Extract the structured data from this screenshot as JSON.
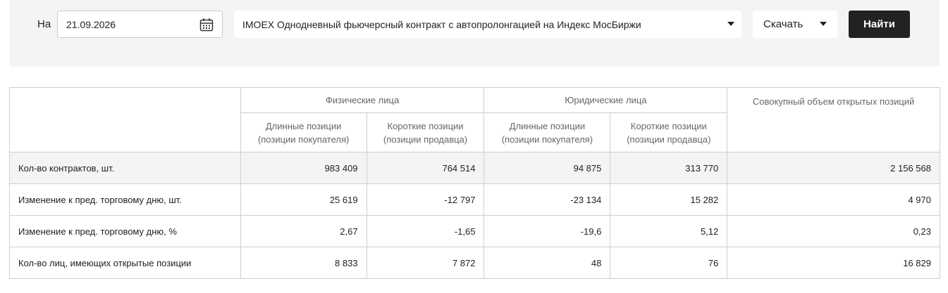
{
  "filters": {
    "date_label": "На",
    "date": "21.09.2026",
    "instrument": "IMOEX Однодневный фьючерсный контракт с автопролонгацией на Индекс МосБиржи",
    "download": "Скачать",
    "submit": "Найти"
  },
  "table": {
    "groups": [
      "Физические лица",
      "Юридические лица",
      "Совокупный объем открытых позиций"
    ],
    "subheaders": [
      [
        "Длинные позиции",
        "(позиции покупателя)"
      ],
      [
        "Короткие позиции",
        "(позиции продавца)"
      ],
      [
        "Длинные позиции",
        "(позиции покупателя)"
      ],
      [
        "Короткие позиции",
        "(позиции продавца)"
      ]
    ],
    "rows": [
      [
        "Кол-во контрактов, шт.",
        "983 409",
        "764 514",
        "94 875",
        "313 770",
        "2 156 568"
      ],
      [
        "Изменение к пред. торговому дню, шт.",
        "25 619",
        "-12 797",
        "-23 134",
        "15 282",
        "4 970"
      ],
      [
        "Изменение к пред. торговому дню, %",
        "2,67",
        "-1,65",
        "-19,6",
        "5,12",
        "0,23"
      ],
      [
        "Кол-во лиц, имеющих открытые позиции",
        "8 833",
        "7 872",
        "48",
        "76",
        "16 829"
      ]
    ]
  }
}
